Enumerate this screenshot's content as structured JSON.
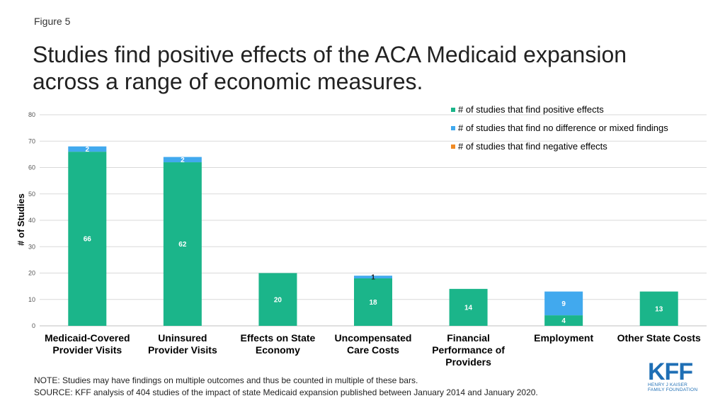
{
  "figure_label": "Figure 5",
  "title": "Studies find positive effects of the ACA Medicaid expansion across a range of economic measures.",
  "note": "NOTE: Studies may have findings on multiple outcomes and thus be counted in multiple of these bars.",
  "source": "SOURCE: KFF analysis of 404 studies of the impact of state Medicaid expansion published between January 2014 and January 2020.",
  "logo": {
    "main": "KFF",
    "line1": "HENRY J KAISER",
    "line2": "FAMILY FOUNDATION"
  },
  "colors": {
    "positive": "#1bb58a",
    "mixed": "#41a9ee",
    "negative": "#f08a24",
    "grid": "#d9d9d9"
  },
  "chart_data": {
    "type": "bar",
    "stacked": true,
    "ylabel": "# of Studies",
    "ylim": [
      0,
      80
    ],
    "yticks": [
      0,
      10,
      20,
      30,
      40,
      50,
      60,
      70,
      80
    ],
    "grid": true,
    "legend_position": "top-right",
    "categories": [
      [
        "Medicaid-Covered",
        "Provider Visits"
      ],
      [
        "Uninsured",
        "Provider Visits"
      ],
      [
        "Effects on State",
        "Economy"
      ],
      [
        "Uncompensated",
        "Care Costs"
      ],
      [
        "Financial",
        "Performance of",
        "Providers"
      ],
      [
        "Employment"
      ],
      [
        "Other State Costs"
      ]
    ],
    "series": [
      {
        "name": "# of studies that find positive effects",
        "color": "#1bb58a",
        "values": [
          66,
          62,
          20,
          18,
          14,
          4,
          13
        ]
      },
      {
        "name": "# of studies that find no difference or mixed findings",
        "color": "#41a9ee",
        "values": [
          2,
          2,
          0,
          1,
          0,
          9,
          0
        ]
      },
      {
        "name": "# of studies that find negative effects",
        "color": "#f08a24",
        "values": [
          0,
          0,
          0,
          0,
          0,
          0,
          0
        ]
      }
    ]
  }
}
